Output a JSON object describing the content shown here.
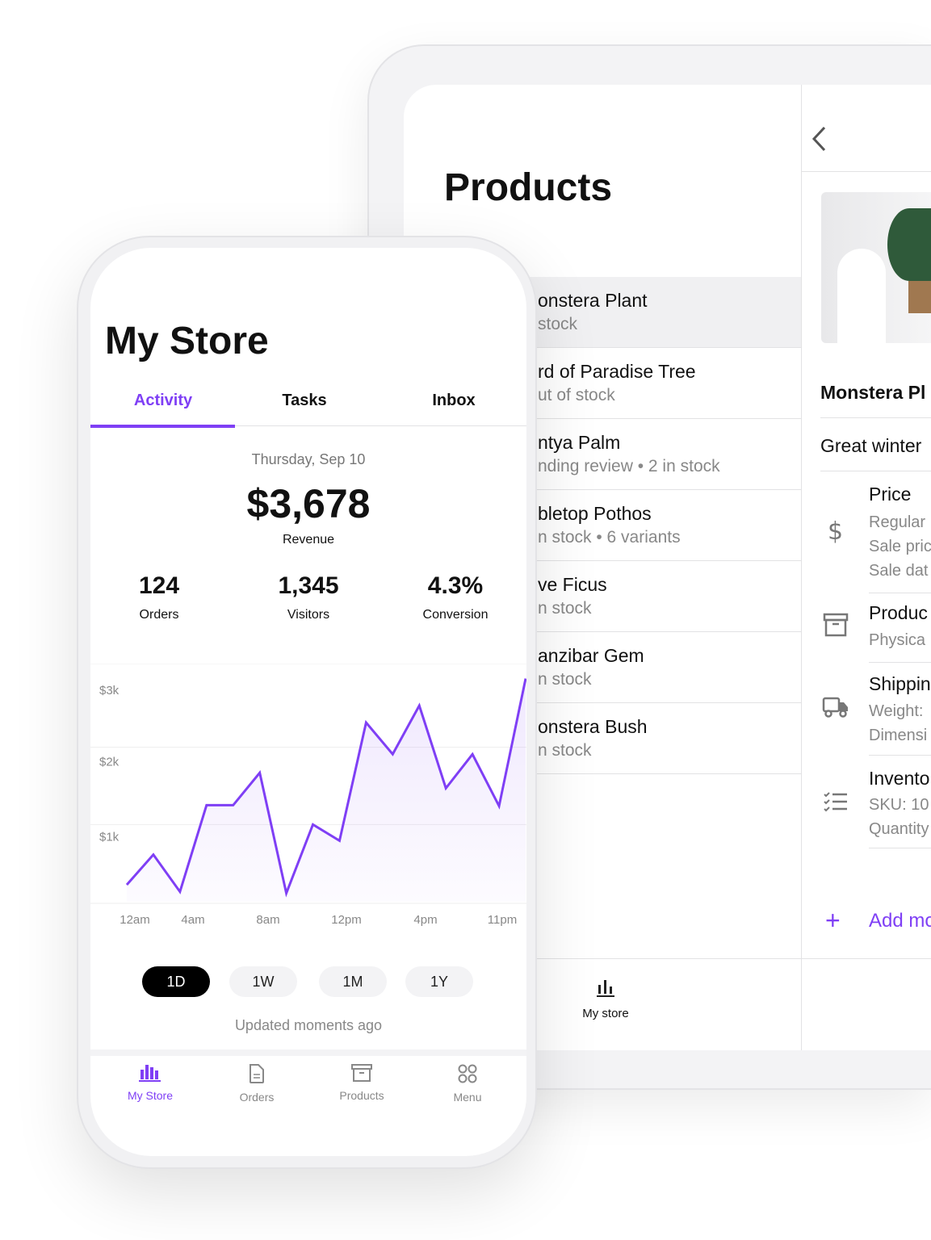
{
  "tablet": {
    "title": "Products",
    "products": [
      {
        "name": "onstera Plant",
        "sub": "stock",
        "selected": true
      },
      {
        "name": "rd of Paradise Tree",
        "sub": "ut of stock"
      },
      {
        "name": "ntya Palm",
        "sub": "nding review • 2 in stock"
      },
      {
        "name": "bletop Pothos",
        "sub": "n stock • 6 variants"
      },
      {
        "name": "ve Ficus",
        "sub": "n stock"
      },
      {
        "name": "anzibar Gem",
        "sub": "n stock"
      },
      {
        "name": "onstera Bush",
        "sub": "n stock"
      }
    ],
    "nav_label": "My store",
    "detail": {
      "name": "Monstera Pl",
      "description": "Great winter",
      "sections": [
        {
          "icon": "dollar-icon",
          "title": "Price",
          "lines": [
            "Regular",
            "Sale pric",
            "Sale dat"
          ]
        },
        {
          "icon": "box-icon",
          "title": "Produc",
          "lines": [
            "Physica"
          ]
        },
        {
          "icon": "truck-icon",
          "title": "Shippin",
          "lines": [
            "Weight:",
            "Dimensi"
          ]
        },
        {
          "icon": "checklist-icon",
          "title": "Invento",
          "lines": [
            "SKU: 10",
            "Quantity"
          ]
        }
      ],
      "add_more": "Add mo"
    }
  },
  "phone": {
    "title": "My Store",
    "tabs": [
      "Activity",
      "Tasks",
      "Inbox"
    ],
    "active_tab": "Activity",
    "date": "Thursday, Sep 10",
    "revenue": "$3,678",
    "revenue_label": "Revenue",
    "stats": [
      {
        "value": "124",
        "label": "Orders"
      },
      {
        "value": "1,345",
        "label": "Visitors"
      },
      {
        "value": "4.3%",
        "label": "Conversion"
      }
    ],
    "ranges": [
      "1D",
      "1W",
      "1M",
      "1Y"
    ],
    "active_range": "1D",
    "updated": "Updated moments ago",
    "bottom_nav": [
      "My Store",
      "Orders",
      "Products",
      "Menu"
    ],
    "accent": "#7f3ff5"
  },
  "chart_data": {
    "type": "area",
    "y_ticks": [
      "$3k",
      "$2k",
      "$1k"
    ],
    "x_ticks": [
      "12am",
      "4am",
      "8am",
      "12pm",
      "4pm",
      "11pm"
    ],
    "ylim": [
      0,
      3000
    ],
    "grid": true,
    "values": [
      220,
      610,
      130,
      1250,
      1250,
      1670,
      110,
      1000,
      790,
      2320,
      1910,
      2540,
      1470,
      1910,
      1240,
      2890
    ]
  }
}
